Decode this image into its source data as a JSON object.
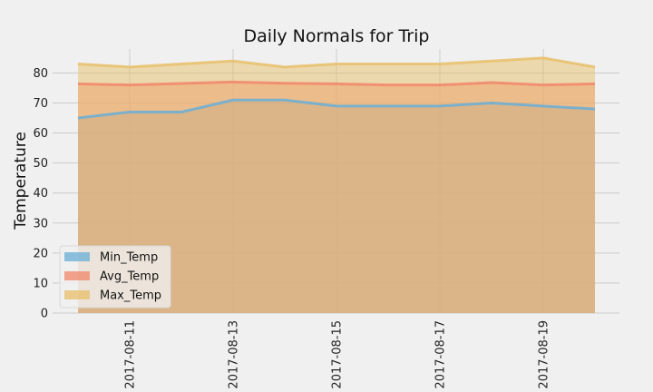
{
  "chart_data": {
    "type": "area",
    "title": "Daily Normals for Trip",
    "xlabel": "",
    "ylabel": "Temperature",
    "ylim": [
      0,
      88
    ],
    "yticks": [
      0,
      10,
      20,
      30,
      40,
      50,
      60,
      70,
      80
    ],
    "x": [
      "2017-08-10",
      "2017-08-11",
      "2017-08-12",
      "2017-08-13",
      "2017-08-14",
      "2017-08-15",
      "2017-08-16",
      "2017-08-17",
      "2017-08-18",
      "2017-08-19",
      "2017-08-20"
    ],
    "xtick_labels": [
      "2017-08-11",
      "2017-08-13",
      "2017-08-15",
      "2017-08-17",
      "2017-08-19"
    ],
    "grid": true,
    "stacked": false,
    "legend_position": "lower-left",
    "series": [
      {
        "name": "Min_Temp",
        "color": "#6aaed6",
        "values": [
          65,
          67,
          67,
          71,
          71,
          69,
          69,
          69,
          70,
          69,
          68
        ]
      },
      {
        "name": "Avg_Temp",
        "color": "#f2866a",
        "values": [
          76.4,
          76.0,
          76.5,
          77.0,
          76.6,
          76.4,
          76.0,
          76.0,
          76.8,
          76.0,
          76.4
        ]
      },
      {
        "name": "Max_Temp",
        "color": "#e8bf6a",
        "values": [
          83,
          82,
          83,
          84,
          82,
          83,
          83,
          83,
          84,
          85,
          82
        ]
      }
    ]
  }
}
